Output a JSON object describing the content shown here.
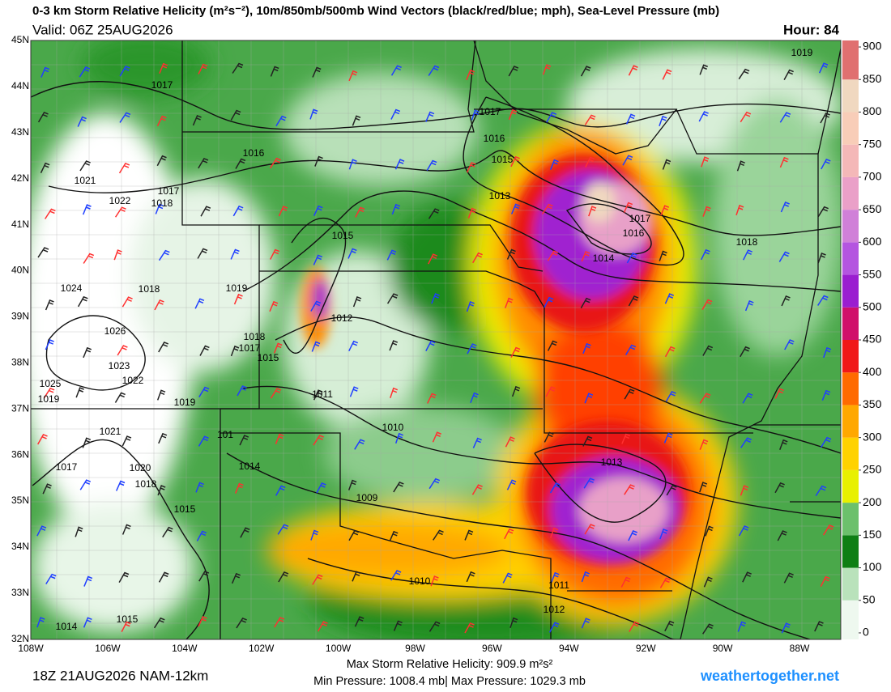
{
  "header": {
    "title": "0-3 km Storm Relative Helicity (m²s⁻²), 10m/850mb/500mb Wind Vectors (black/red/blue; mph), Sea-Level Pressure (mb)",
    "valid": "Valid: 06Z 25AUG2026",
    "hour": "Hour: 84"
  },
  "map": {
    "lon_labels": [
      "108W",
      "106W",
      "104W",
      "102W",
      "100W",
      "98W",
      "96W",
      "94W",
      "92W",
      "90W",
      "88W"
    ],
    "lat_labels": [
      "45N",
      "44N",
      "43N",
      "42N",
      "41N",
      "40N",
      "39N",
      "38N",
      "37N",
      "36N",
      "35N",
      "34N",
      "33N",
      "32N"
    ],
    "isobar_labels": [
      "1019",
      "1017",
      "1017",
      "1016",
      "1016",
      "1015",
      "1021",
      "1017",
      "1018",
      "1022",
      "1013",
      "1017",
      "1016",
      "1015",
      "1014",
      "1018",
      "1024",
      "1018",
      "1019",
      "1012",
      "1026",
      "1018",
      "1017",
      "1015",
      "1023",
      "1025",
      "1022",
      "1019",
      "1019",
      "1011",
      "1010",
      "1021",
      "101",
      "1013",
      "1014",
      "1020",
      "1017",
      "1018",
      "1009",
      "1015",
      "1010",
      "1011",
      "1012",
      "1015",
      "1014"
    ]
  },
  "colorbar": {
    "lim": [
      -10,
      910
    ],
    "ticks": [
      0,
      50,
      100,
      150,
      200,
      250,
      300,
      350,
      400,
      450,
      500,
      550,
      600,
      650,
      700,
      750,
      800,
      850,
      900
    ],
    "colors": [
      "#eef8ef",
      "#b9e2bb",
      "#0e7f14",
      "#6cc06c",
      "#e8f000",
      "#ffd200",
      "#ffa800",
      "#ff6a00",
      "#f01818",
      "#d0106a",
      "#9a1ed0",
      "#b455e0",
      "#d080d8",
      "#eaa0c8",
      "#f4b8b8",
      "#f8cdb8",
      "#f0d8c0",
      "#e07070"
    ]
  },
  "footer": {
    "run": "18Z 21AUG2026 NAM-12km",
    "max_srh": "Max Storm Relative Helicity: 909.9 m²s²",
    "pressure": "Min Pressure: 1008.4 mb| Max Pressure: 1029.3 mb",
    "site": "weathertogether.net"
  }
}
